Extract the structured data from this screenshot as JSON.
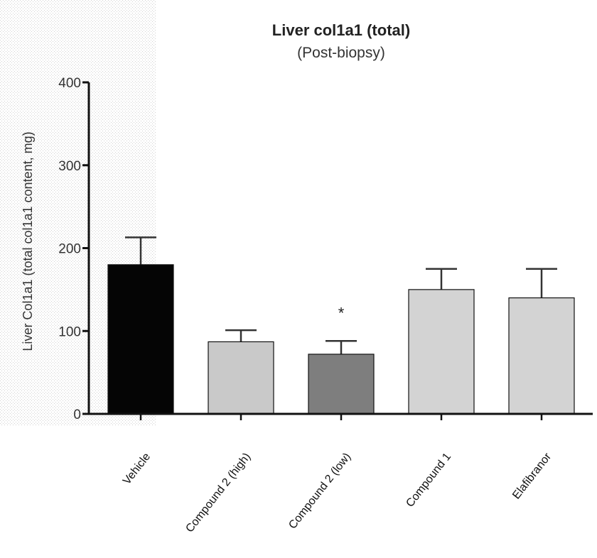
{
  "chart_data": {
    "type": "bar",
    "title": "Liver col1a1 (total)",
    "subtitle": "(Post-biopsy)",
    "xlabel": "",
    "ylabel": "Liver Col1a1 (total col1a1 content, mg)",
    "ylim": [
      0,
      400
    ],
    "yticks": [
      0,
      100,
      200,
      300,
      400
    ],
    "categories": [
      "Vehicle",
      "Compound 2 (high)",
      "Compound 2 (low)",
      "Compound 1",
      "Elafibranor"
    ],
    "values": [
      180,
      87,
      72,
      150,
      140
    ],
    "errors": [
      33,
      14,
      16,
      25,
      35
    ],
    "bar_colors": [
      "#050505",
      "#c9c9c9",
      "#7e7e7e",
      "#d3d3d3",
      "#d3d3d3"
    ],
    "annotations": [
      {
        "category": "Compound 2 (low)",
        "text": "*"
      }
    ],
    "grid": false,
    "legend": "none"
  }
}
